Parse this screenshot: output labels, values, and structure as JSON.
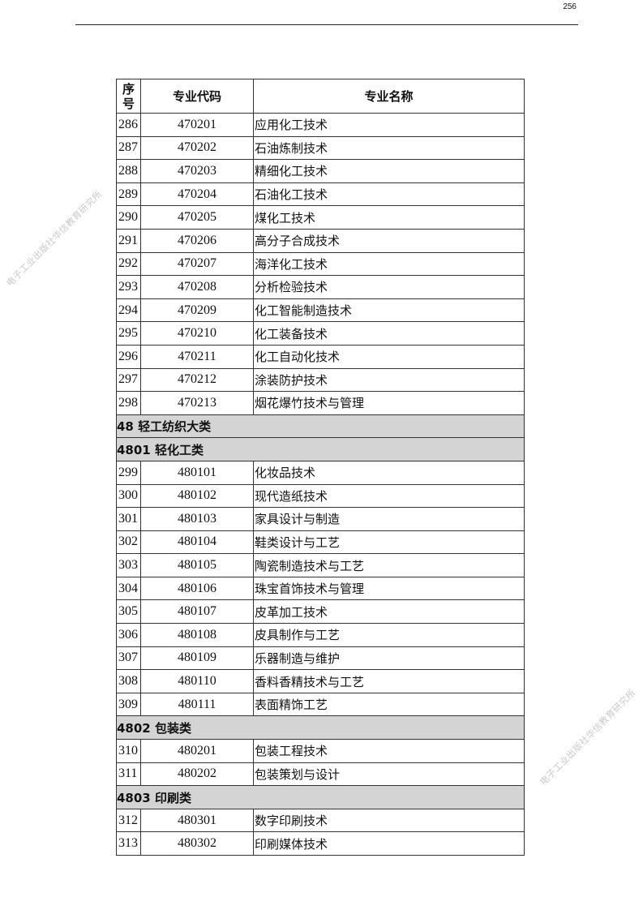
{
  "page_number": "256",
  "watermark": "电子工业出版社华信教育研究所",
  "table": {
    "headers": {
      "seq": "序号",
      "code": "专业代码",
      "name": "专业名称"
    },
    "rows": [
      {
        "seq": "286",
        "code": "470201",
        "name": "应用化工技术"
      },
      {
        "seq": "287",
        "code": "470202",
        "name": "石油炼制技术"
      },
      {
        "seq": "288",
        "code": "470203",
        "name": "精细化工技术"
      },
      {
        "seq": "289",
        "code": "470204",
        "name": "石油化工技术"
      },
      {
        "seq": "290",
        "code": "470205",
        "name": "煤化工技术"
      },
      {
        "seq": "291",
        "code": "470206",
        "name": "高分子合成技术"
      },
      {
        "seq": "292",
        "code": "470207",
        "name": "海洋化工技术"
      },
      {
        "seq": "293",
        "code": "470208",
        "name": "分析检验技术"
      },
      {
        "seq": "294",
        "code": "470209",
        "name": "化工智能制造技术"
      },
      {
        "seq": "295",
        "code": "470210",
        "name": "化工装备技术"
      },
      {
        "seq": "296",
        "code": "470211",
        "name": "化工自动化技术"
      },
      {
        "seq": "297",
        "code": "470212",
        "name": "涂装防护技术"
      },
      {
        "seq": "298",
        "code": "470213",
        "name": "烟花爆竹技术与管理"
      },
      {
        "section": "48 轻工纺织大类"
      },
      {
        "section": "4801 轻化工类"
      },
      {
        "seq": "299",
        "code": "480101",
        "name": "化妆品技术"
      },
      {
        "seq": "300",
        "code": "480102",
        "name": "现代造纸技术"
      },
      {
        "seq": "301",
        "code": "480103",
        "name": "家具设计与制造"
      },
      {
        "seq": "302",
        "code": "480104",
        "name": "鞋类设计与工艺"
      },
      {
        "seq": "303",
        "code": "480105",
        "name": "陶瓷制造技术与工艺"
      },
      {
        "seq": "304",
        "code": "480106",
        "name": "珠宝首饰技术与管理"
      },
      {
        "seq": "305",
        "code": "480107",
        "name": "皮革加工技术"
      },
      {
        "seq": "306",
        "code": "480108",
        "name": "皮具制作与工艺"
      },
      {
        "seq": "307",
        "code": "480109",
        "name": "乐器制造与维护"
      },
      {
        "seq": "308",
        "code": "480110",
        "name": "香料香精技术与工艺"
      },
      {
        "seq": "309",
        "code": "480111",
        "name": "表面精饰工艺"
      },
      {
        "section": "4802 包装类"
      },
      {
        "seq": "310",
        "code": "480201",
        "name": "包装工程技术"
      },
      {
        "seq": "311",
        "code": "480202",
        "name": "包装策划与设计"
      },
      {
        "section": "4803 印刷类"
      },
      {
        "seq": "312",
        "code": "480301",
        "name": "数字印刷技术"
      },
      {
        "seq": "313",
        "code": "480302",
        "name": "印刷媒体技术"
      }
    ]
  }
}
